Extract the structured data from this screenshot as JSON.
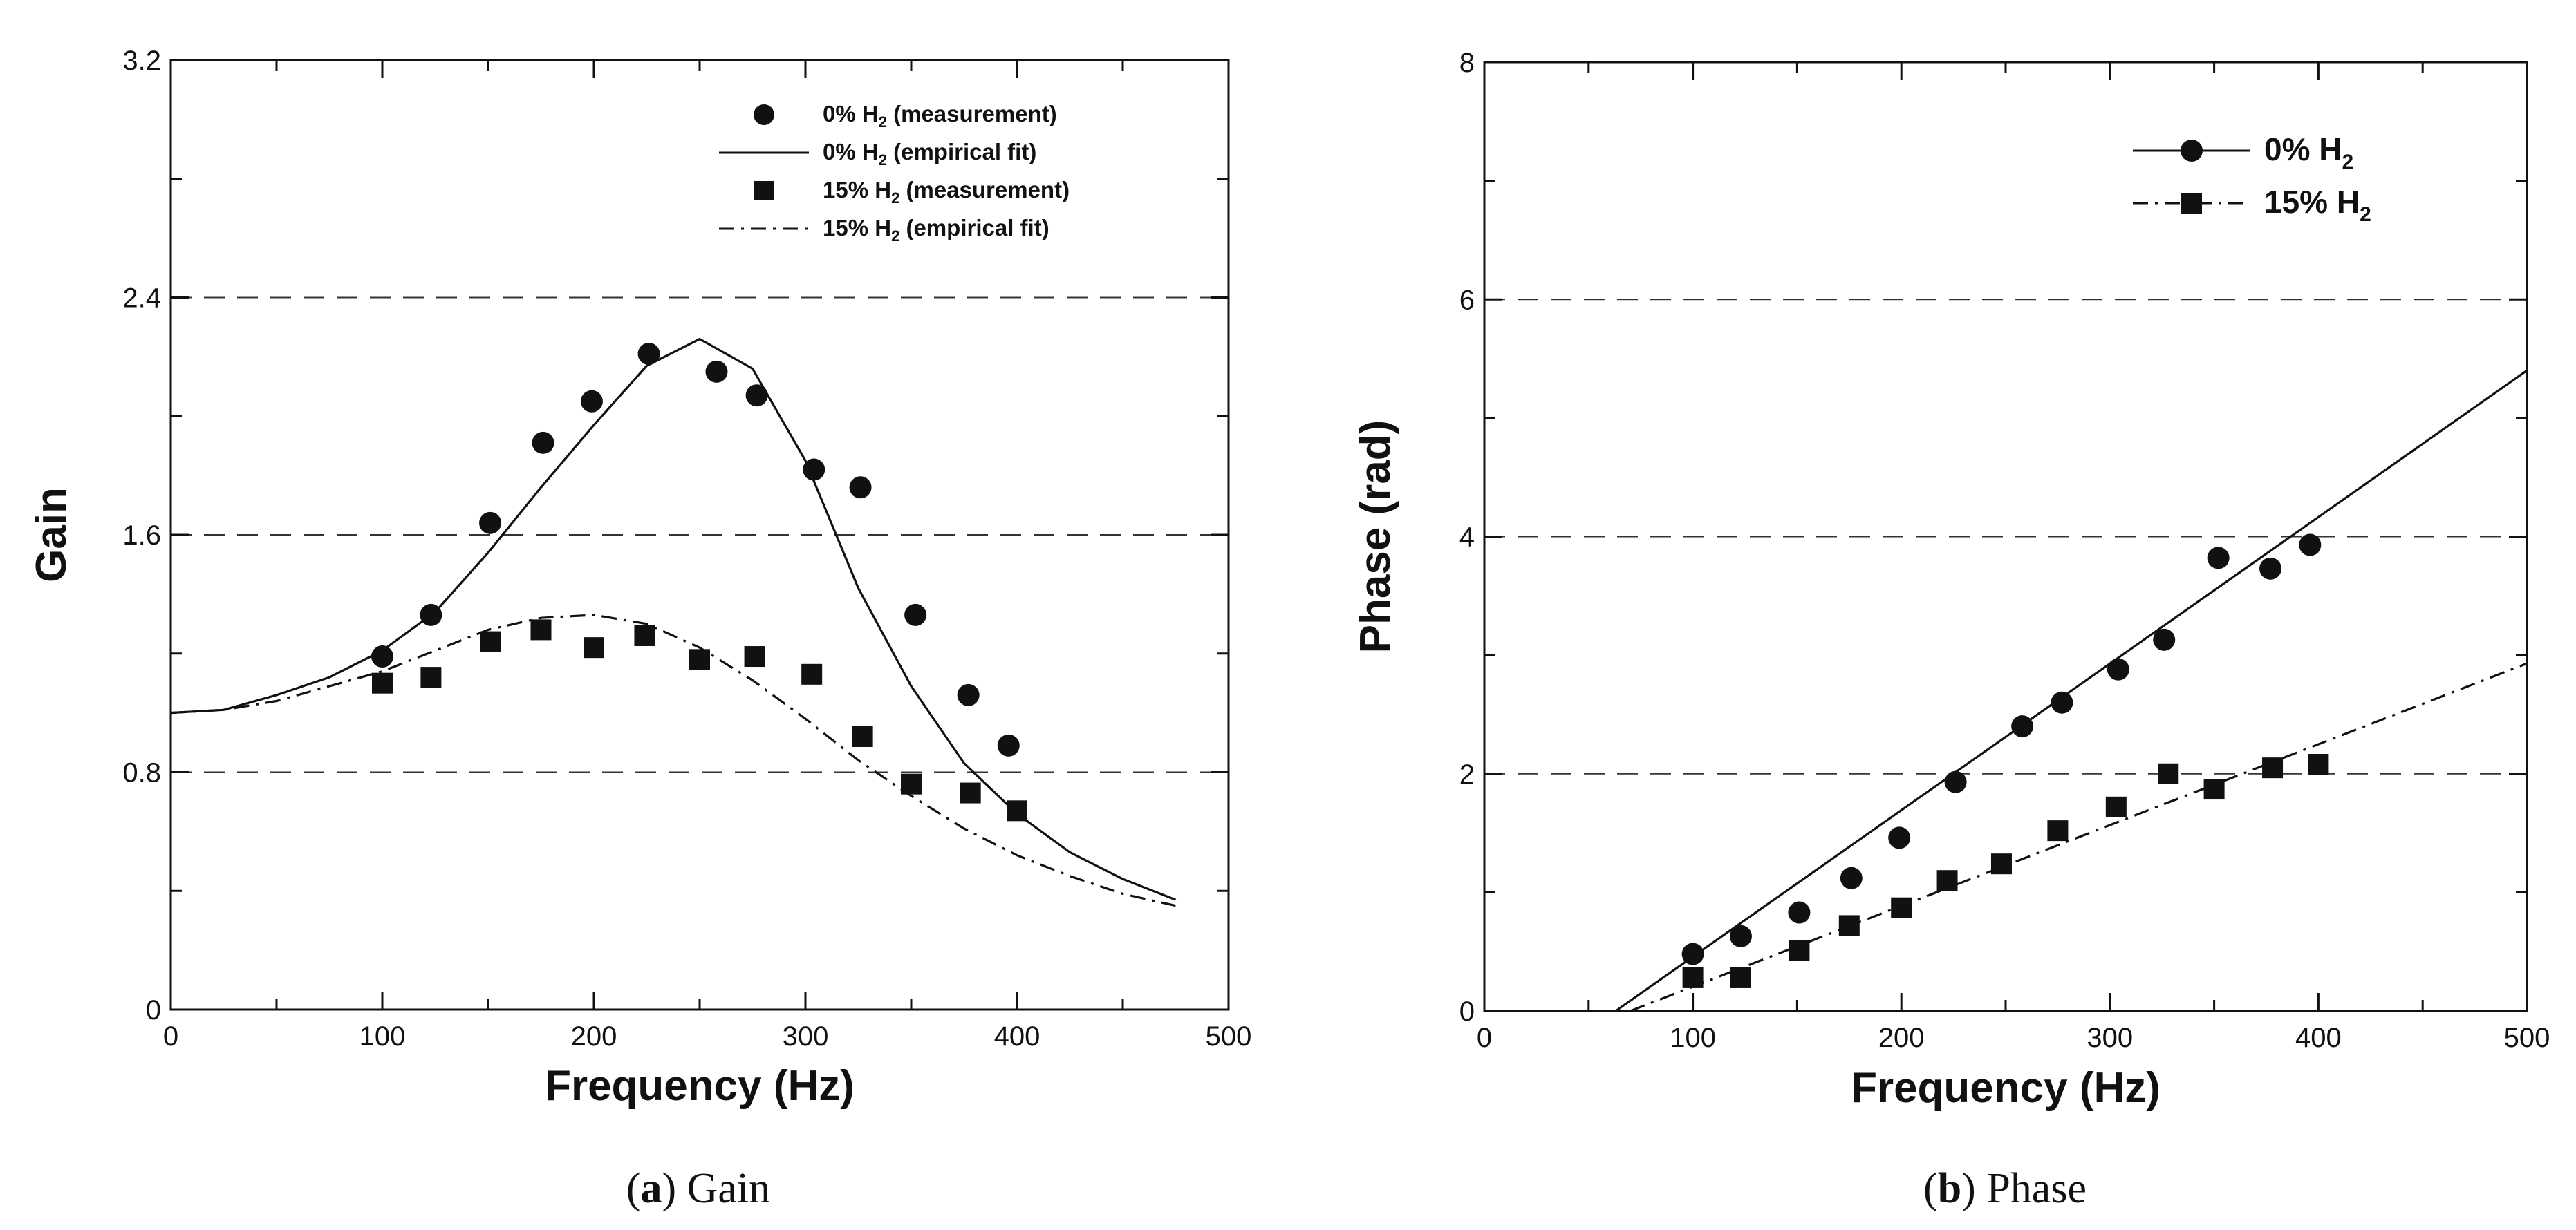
{
  "chart_data": [
    {
      "type": "line",
      "title": "",
      "caption": {
        "letter": "a",
        "text": "Gain"
      },
      "xlabel": "Frequency (Hz)",
      "ylabel": "Gain",
      "xlim": [
        0,
        500
      ],
      "ylim": [
        0,
        3.2
      ],
      "xticks": [
        "0",
        "100",
        "200",
        "300",
        "400",
        "500"
      ],
      "yticks": [
        "0",
        "0.8",
        "1.6",
        "2.4",
        "3.2"
      ],
      "grid": "dashed horizontal at 0.8, 1.6, 2.4",
      "legend": [
        {
          "label": "0% H",
          "sub": "2",
          "suffix": " (measurement)"
        },
        {
          "label": "0% H",
          "sub": "2",
          "suffix": " (empirical fit)"
        },
        {
          "label": "15% H",
          "sub": "2",
          "suffix": " (measurement)"
        },
        {
          "label": "15% H",
          "sub": "2",
          "suffix": " (empirical fit)"
        }
      ],
      "series": [
        {
          "name": "0% H2 (measurement)",
          "marker": "circle",
          "x": [
            100,
            123,
            151,
            176,
            199,
            226,
            258,
            277,
            304,
            326,
            352,
            377,
            396
          ],
          "y": [
            1.19,
            1.33,
            1.64,
            1.91,
            2.05,
            2.21,
            2.15,
            2.07,
            1.82,
            1.76,
            1.33,
            1.06,
            0.89
          ]
        },
        {
          "name": "0% H2 (empirical fit)",
          "line": "solid",
          "x": [
            0,
            25,
            50,
            75,
            100,
            125,
            150,
            175,
            200,
            225,
            250,
            275,
            300,
            325,
            350,
            375,
            400,
            425,
            450,
            475
          ],
          "y": [
            1.0,
            1.01,
            1.06,
            1.12,
            1.21,
            1.34,
            1.54,
            1.76,
            1.97,
            2.17,
            2.26,
            2.16,
            1.85,
            1.42,
            1.09,
            0.83,
            0.66,
            0.53,
            0.44,
            0.37
          ]
        },
        {
          "name": "15% H2 (measurement)",
          "marker": "square",
          "x": [
            100,
            123,
            151,
            175,
            200,
            224,
            250,
            276,
            303,
            327,
            350,
            378,
            400
          ],
          "y": [
            1.1,
            1.12,
            1.24,
            1.28,
            1.22,
            1.26,
            1.18,
            1.19,
            1.13,
            0.92,
            0.76,
            0.73,
            0.67
          ]
        },
        {
          "name": "15% H2 (empirical fit)",
          "line": "dashdot",
          "x": [
            0,
            25,
            50,
            75,
            100,
            125,
            150,
            175,
            200,
            225,
            250,
            275,
            300,
            325,
            350,
            375,
            400,
            425,
            450,
            475
          ],
          "y": [
            1.0,
            1.01,
            1.04,
            1.09,
            1.14,
            1.21,
            1.28,
            1.32,
            1.33,
            1.3,
            1.22,
            1.11,
            0.98,
            0.84,
            0.72,
            0.61,
            0.52,
            0.45,
            0.39,
            0.35
          ]
        }
      ]
    },
    {
      "type": "line",
      "title": "",
      "caption": {
        "letter": "b",
        "text": "Phase"
      },
      "xlabel": "Frequency (Hz)",
      "ylabel": "Phase (rad)",
      "xlim": [
        0,
        500
      ],
      "ylim": [
        0,
        8
      ],
      "xticks": [
        "0",
        "100",
        "200",
        "300",
        "400",
        "500"
      ],
      "yticks": [
        "0",
        "2",
        "4",
        "6",
        "8"
      ],
      "grid": "dashed horizontal at 2, 4, 6",
      "legend": [
        {
          "label": "0% H",
          "sub": "2",
          "suffix": ""
        },
        {
          "label": "15% H",
          "sub": "2",
          "suffix": ""
        }
      ],
      "series": [
        {
          "name": "0% H2",
          "marker": "circle",
          "line": "solid",
          "x": [
            100,
            123,
            151,
            176,
            199,
            226,
            258,
            277,
            304,
            326,
            352,
            377,
            396
          ],
          "y": [
            0.48,
            0.63,
            0.83,
            1.12,
            1.46,
            1.93,
            2.4,
            2.6,
            2.88,
            3.13,
            3.82,
            3.73,
            3.93
          ],
          "fit_x": [
            63,
            500
          ],
          "fit_y": [
            0,
            5.4
          ]
        },
        {
          "name": "15% H2",
          "marker": "square",
          "line": "dashdot",
          "x": [
            100,
            123,
            151,
            175,
            200,
            222,
            248,
            275,
            303,
            328,
            350,
            378,
            400
          ],
          "y": [
            0.28,
            0.28,
            0.51,
            0.72,
            0.87,
            1.1,
            1.24,
            1.52,
            1.72,
            2.0,
            1.87,
            2.05,
            2.08
          ],
          "fit_x": [
            70,
            500
          ],
          "fit_y": [
            0,
            2.93
          ]
        }
      ]
    }
  ]
}
